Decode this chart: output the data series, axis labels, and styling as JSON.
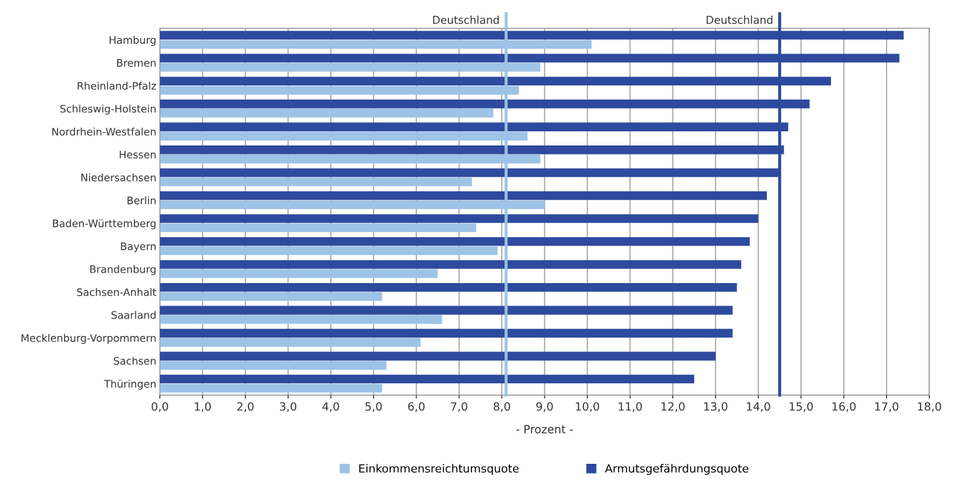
{
  "chart_data": {
    "type": "bar",
    "orientation": "horizontal",
    "xlabel": "- Prozent -",
    "categories": [
      "Hamburg",
      "Bremen",
      "Rheinland-Pfalz",
      "Schleswig-Holstein",
      "Nordrhein-Westfalen",
      "Hessen",
      "Niedersachsen",
      "Berlin",
      "Baden-Württemberg",
      "Bayern",
      "Brandenburg",
      "Sachsen-Anhalt",
      "Saarland",
      "Mecklenburg-Vorpommern",
      "Sachsen",
      "Thüringen"
    ],
    "series": [
      {
        "name": "Einkommensreichtumsquote",
        "color": "#9dc3e6",
        "values": [
          10.1,
          8.9,
          8.4,
          7.8,
          8.6,
          8.9,
          7.3,
          9.0,
          7.4,
          7.9,
          6.5,
          5.2,
          6.6,
          6.1,
          5.3,
          5.2
        ]
      },
      {
        "name": "Armutsgefährdungsquote",
        "color": "#2e4a9e",
        "values": [
          17.4,
          17.3,
          15.7,
          15.2,
          14.7,
          14.6,
          14.5,
          14.2,
          14.0,
          13.8,
          13.6,
          13.5,
          13.4,
          13.4,
          13.0,
          12.5
        ]
      }
    ],
    "xlim": [
      0,
      18
    ],
    "xticks": [
      {
        "value": 0,
        "label": "0,0"
      },
      {
        "value": 1,
        "label": "1,0"
      },
      {
        "value": 2,
        "label": "2,0"
      },
      {
        "value": 3,
        "label": "3,0"
      },
      {
        "value": 4,
        "label": "4,0"
      },
      {
        "value": 5,
        "label": "5,0"
      },
      {
        "value": 6,
        "label": "6,0"
      },
      {
        "value": 7,
        "label": "7,0"
      },
      {
        "value": 8,
        "label": "8,0"
      },
      {
        "value": 9,
        "label": "9,0"
      },
      {
        "value": 10,
        "label": "10,0"
      },
      {
        "value": 11,
        "label": "11,0"
      },
      {
        "value": 12,
        "label": "12,0"
      },
      {
        "value": 13,
        "label": "13,0"
      },
      {
        "value": 14,
        "label": "14,0"
      },
      {
        "value": 15,
        "label": "15,0"
      },
      {
        "value": 16,
        "label": "16,0"
      },
      {
        "value": 17,
        "label": "17,0"
      },
      {
        "value": 18,
        "label": "18,0"
      }
    ],
    "ref_lines": [
      {
        "axis": "x",
        "value": 8.1,
        "label": "Deutschland",
        "color": "#9dc3e6"
      },
      {
        "axis": "x",
        "value": 14.5,
        "label": "Deutschland",
        "color": "#2e4a9e"
      }
    ],
    "grid": "x",
    "legend": "bottom"
  }
}
